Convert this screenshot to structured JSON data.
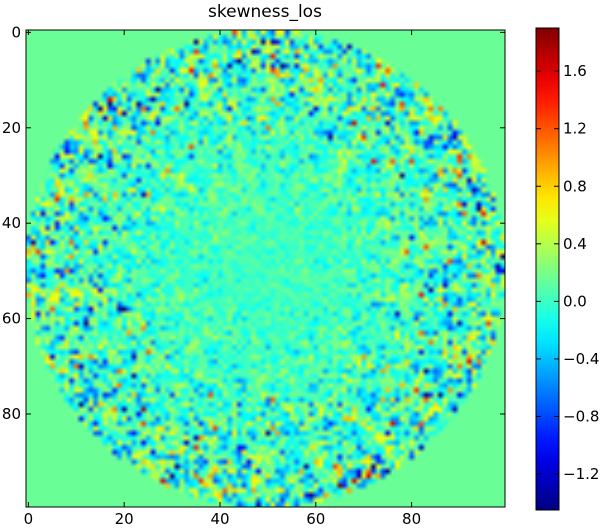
{
  "chart_data": {
    "type": "heatmap",
    "title": "skewness_los",
    "xlabel": "",
    "ylabel": "",
    "grid": false,
    "colormap": "jet",
    "image_size": [
      100,
      100
    ],
    "xlim": [
      -0.5,
      99.5
    ],
    "ylim": [
      99.5,
      -0.5
    ],
    "x_ticks": [
      0,
      20,
      40,
      60,
      80
    ],
    "y_ticks": [
      0,
      20,
      40,
      60,
      80
    ],
    "x_tick_labels": [
      "0",
      "20",
      "40",
      "60",
      "80"
    ],
    "y_tick_labels": [
      "0",
      "20",
      "40",
      "60",
      "80"
    ],
    "data_description": "Circular region of radius ~50 centred at (49.5, 49.5); values near 0 in the centre, noisier toward the rim with extremes around -1.4 and +1.8; outside the circle the value is a constant 0.15.",
    "background_value": 0.15,
    "circle_center": [
      49.5,
      49.5
    ],
    "circle_radius": 50,
    "value_range": [
      -1.45,
      1.9
    ],
    "colorbar": {
      "vmin": -1.45,
      "vmax": 1.9,
      "ticks": [
        1.6,
        1.2,
        0.8,
        0.4,
        0.0,
        -0.4,
        -0.8,
        -1.2
      ],
      "tick_labels": [
        "1.6",
        "1.2",
        "0.8",
        "0.4",
        "0.0",
        "−0.4",
        "−0.8",
        "−1.2"
      ]
    }
  }
}
